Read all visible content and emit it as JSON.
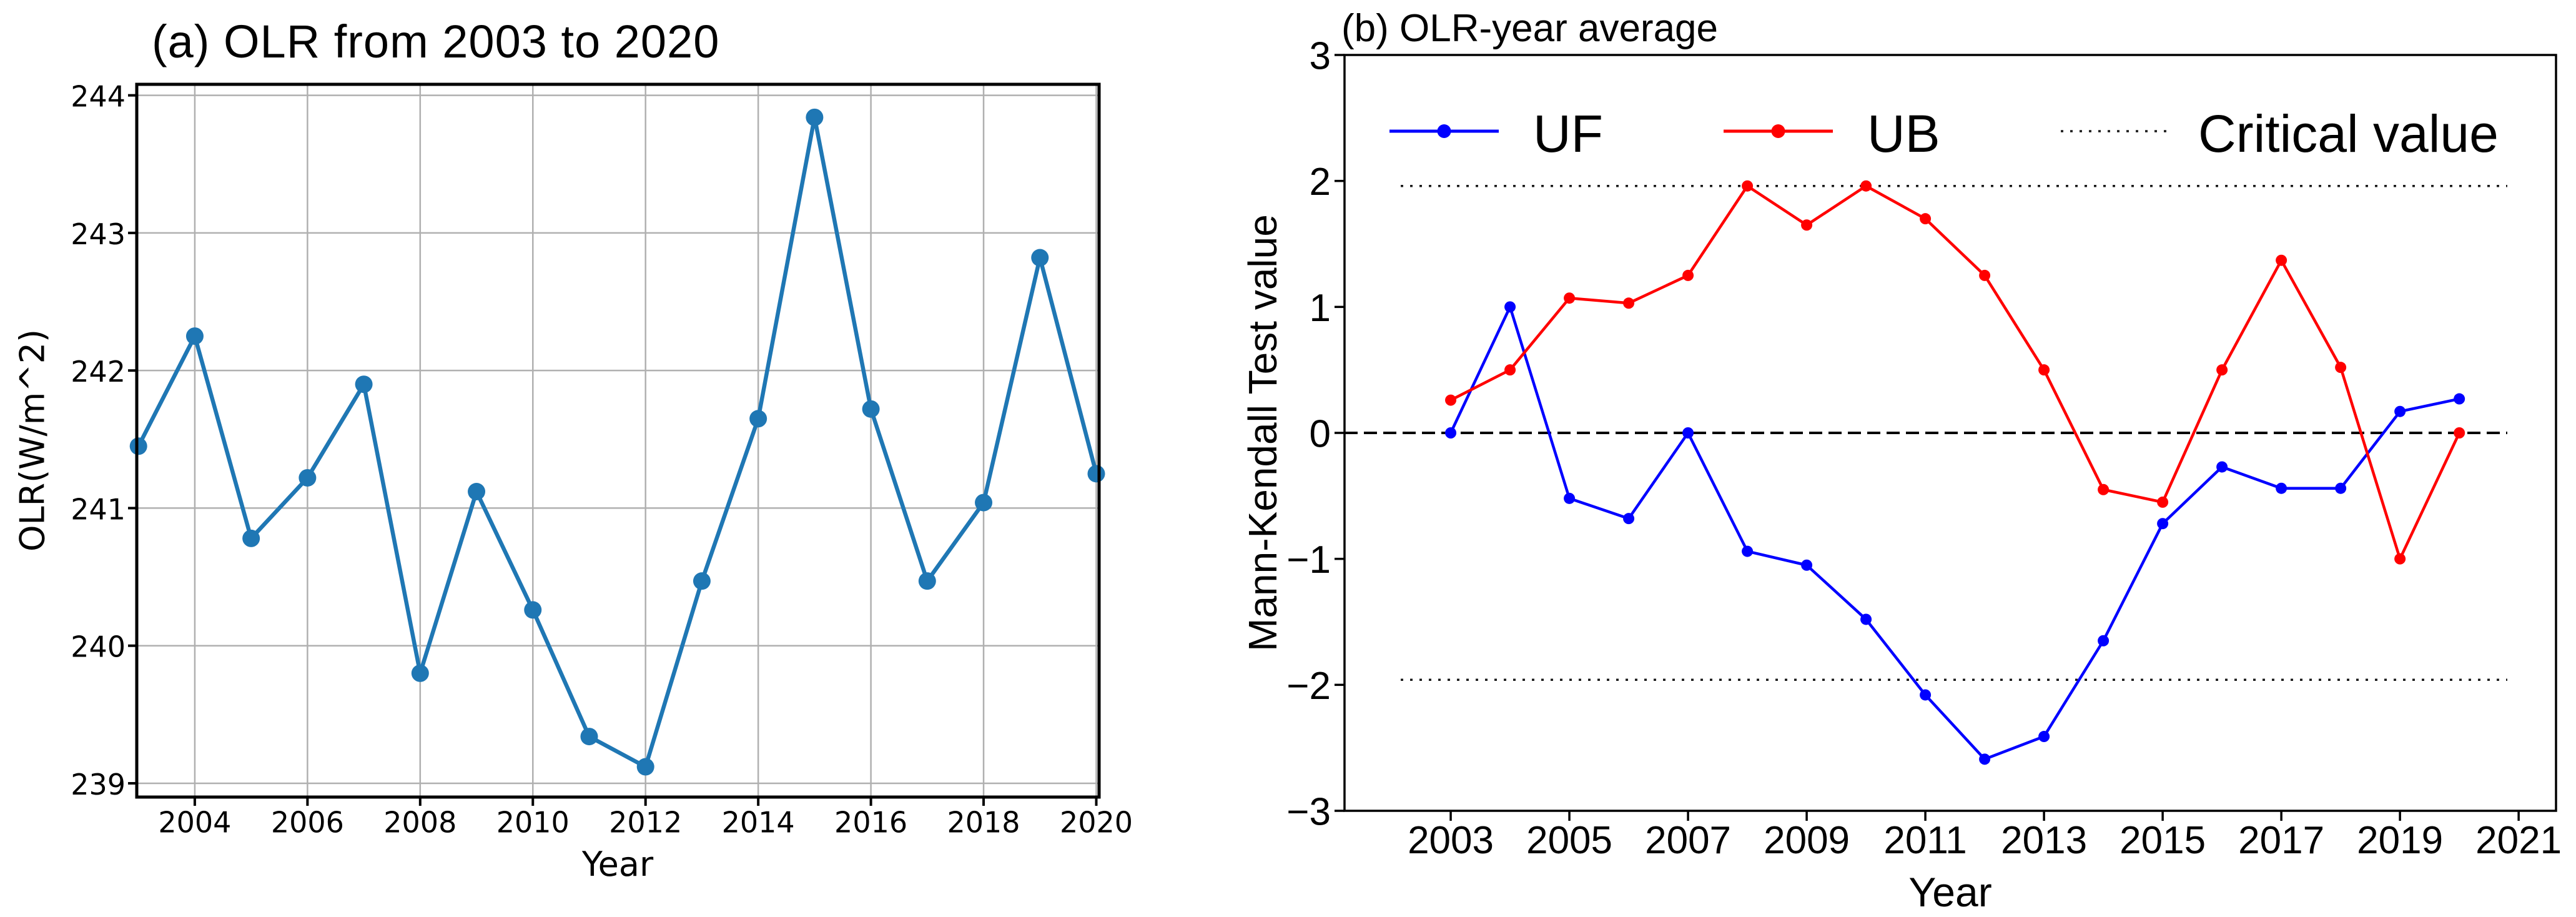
{
  "figure": {
    "background": "#ffffff",
    "panel_count": 2
  },
  "colors": {
    "panel_a_line": "#1f77b4",
    "uf_line": "#0000ff",
    "ub_line": "#ff0000",
    "critical_line": "#1a1a1a",
    "grid": "#b0b0b0",
    "text": "#000000"
  },
  "chart_data": [
    {
      "id": "panel-a",
      "type": "line",
      "title": "(a) OLR from 2003 to 2020",
      "xlabel": "Year",
      "ylabel": "OLR(W/m^2)",
      "x": [
        2003,
        2004,
        2005,
        2006,
        2007,
        2008,
        2009,
        2010,
        2011,
        2012,
        2013,
        2014,
        2015,
        2016,
        2017,
        2018,
        2019,
        2020
      ],
      "series": [
        {
          "name": "OLR",
          "color": "#1f77b4",
          "marker": "circle",
          "values": [
            241.45,
            242.25,
            240.78,
            241.22,
            241.9,
            239.8,
            241.12,
            240.26,
            239.34,
            239.12,
            240.47,
            241.65,
            243.84,
            241.72,
            240.47,
            241.04,
            242.82,
            241.25
          ]
        }
      ],
      "xticks": [
        2004,
        2006,
        2008,
        2010,
        2012,
        2014,
        2016,
        2018,
        2020
      ],
      "yticks": [
        239,
        240,
        241,
        242,
        243,
        244
      ],
      "xlim": [
        2002.97,
        2020.05
      ],
      "ylim": [
        238.9,
        244.08
      ],
      "grid": true,
      "legend": null
    },
    {
      "id": "panel-b",
      "type": "line",
      "title": "(b) OLR-year average",
      "xlabel": "Year",
      "ylabel": "Mann-Kendall Test value",
      "x": [
        2003,
        2004,
        2005,
        2006,
        2007,
        2008,
        2009,
        2010,
        2011,
        2012,
        2013,
        2014,
        2015,
        2016,
        2017,
        2018,
        2019,
        2020
      ],
      "series": [
        {
          "name": "UF",
          "color": "#0000ff",
          "marker": "circle",
          "values": [
            0.0,
            1.0,
            -0.52,
            -0.68,
            0.0,
            -0.94,
            -1.05,
            -1.48,
            -2.08,
            -2.59,
            -2.41,
            -1.65,
            -0.72,
            -0.27,
            -0.44,
            -0.44,
            0.17,
            0.27
          ]
        },
        {
          "name": "UB",
          "color": "#ff0000",
          "marker": "circle",
          "values": [
            0.26,
            0.5,
            1.07,
            1.03,
            1.25,
            1.96,
            1.65,
            1.96,
            1.7,
            1.25,
            0.5,
            -0.45,
            -0.55,
            0.5,
            1.37,
            0.52,
            -1.0,
            0.0
          ]
        }
      ],
      "reference_lines": {
        "zero": 0,
        "zero_style": "dashed",
        "critical_values": [
          1.96,
          -1.96
        ],
        "critical_style": "dotted"
      },
      "xticks": [
        2003,
        2005,
        2007,
        2009,
        2011,
        2013,
        2015,
        2017,
        2019,
        2021
      ],
      "yticks": [
        3,
        2,
        1,
        0,
        -1,
        -2,
        -3
      ],
      "xlim": [
        2001.21,
        2021.63
      ],
      "ylim": [
        -3,
        3
      ],
      "grid": false,
      "legend": {
        "entries": [
          "UF",
          "UB",
          "Critical value"
        ],
        "position": "upper-inside",
        "frame": false
      }
    }
  ]
}
